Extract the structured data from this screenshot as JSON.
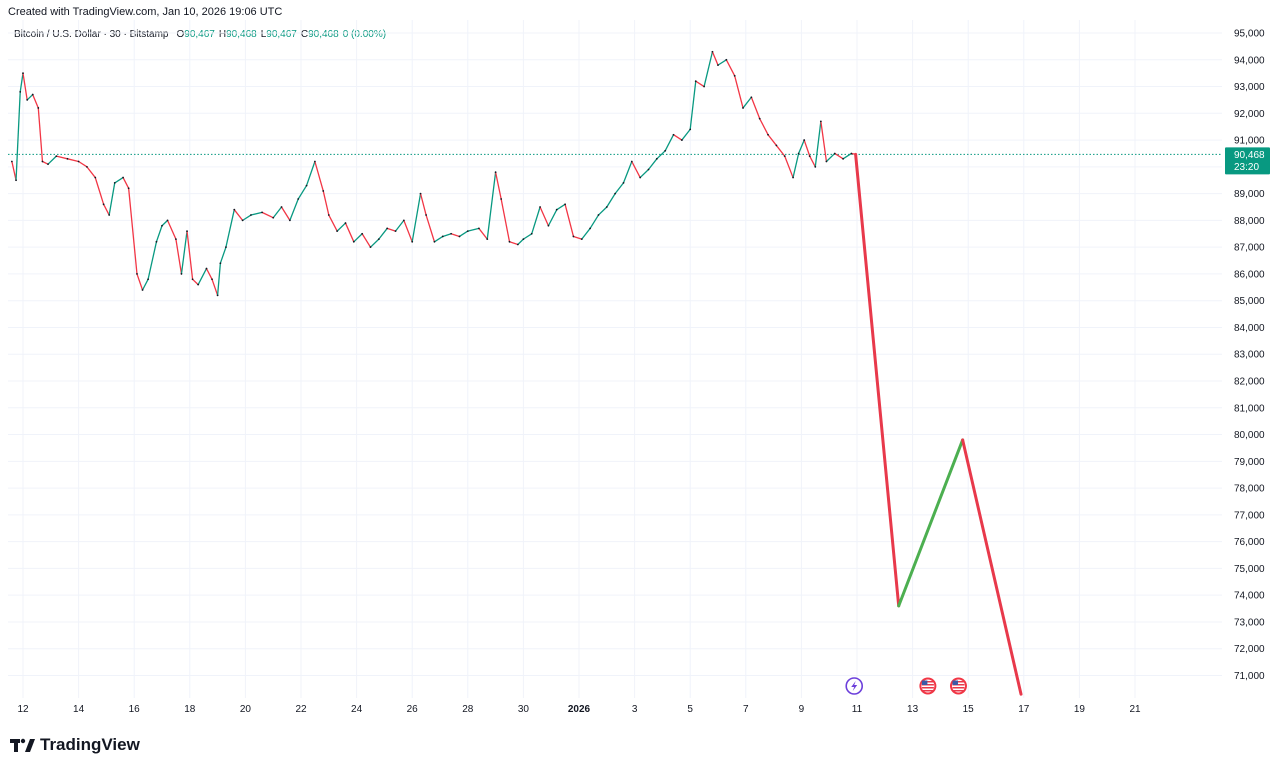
{
  "header": {
    "created": "Created with TradingView.com, Jan 10, 2026 19:06 UTC"
  },
  "legend": {
    "symbol": "Bitcoin / U.S. Dollar · 30 · Bitstamp",
    "o_key": "O",
    "o_val": "90,467",
    "h_key": "H",
    "h_val": "90,468",
    "l_key": "L",
    "l_val": "90,467",
    "c_key": "C",
    "c_val": "90,468",
    "change": "0 (0.00%)"
  },
  "price_badge": {
    "price": "90,468",
    "countdown": "23:20"
  },
  "brand": {
    "name": "TradingView"
  },
  "colors": {
    "up": "#089981",
    "down": "#F23645",
    "grid": "#F0F3FA",
    "projection_down": "#E8394B",
    "projection_up": "#4CAF50",
    "event_icon": "#6C3FDB"
  },
  "chart_data": {
    "type": "line",
    "title": "Bitcoin / U.S. Dollar · 30 · Bitstamp",
    "xlabel": "",
    "ylabel": "",
    "ylim": [
      70000,
      95000
    ],
    "y_ticks": [
      "95,000",
      "94,000",
      "93,000",
      "92,000",
      "91,000",
      "90,000",
      "89,000",
      "88,000",
      "87,000",
      "86,000",
      "85,000",
      "84,000",
      "83,000",
      "82,000",
      "81,000",
      "80,000",
      "79,000",
      "78,000",
      "77,000",
      "76,000",
      "75,000",
      "74,000",
      "73,000",
      "72,000",
      "71,000"
    ],
    "x_ticks": [
      {
        "day": 12,
        "label": "12"
      },
      {
        "day": 14,
        "label": "14"
      },
      {
        "day": 16,
        "label": "16"
      },
      {
        "day": 18,
        "label": "18"
      },
      {
        "day": 20,
        "label": "20"
      },
      {
        "day": 22,
        "label": "22"
      },
      {
        "day": 24,
        "label": "24"
      },
      {
        "day": 26,
        "label": "26"
      },
      {
        "day": 28,
        "label": "28"
      },
      {
        "day": 30,
        "label": "30"
      },
      {
        "day": 32,
        "label": "2026",
        "bold": true
      },
      {
        "day": 34,
        "label": "3"
      },
      {
        "day": 36,
        "label": "5"
      },
      {
        "day": 38,
        "label": "7"
      },
      {
        "day": 40,
        "label": "9"
      },
      {
        "day": 42,
        "label": "11"
      },
      {
        "day": 44,
        "label": "13"
      },
      {
        "day": 46,
        "label": "15"
      },
      {
        "day": 48,
        "label": "17"
      },
      {
        "day": 50,
        "label": "19"
      },
      {
        "day": 52,
        "label": "21"
      }
    ],
    "current_price": 90468,
    "price_series": {
      "name": "BTC/USD",
      "points": [
        [
          11.6,
          90200
        ],
        [
          11.75,
          89500
        ],
        [
          11.9,
          92800
        ],
        [
          12.0,
          93500
        ],
        [
          12.15,
          92500
        ],
        [
          12.35,
          92700
        ],
        [
          12.55,
          92200
        ],
        [
          12.7,
          90200
        ],
        [
          12.9,
          90100
        ],
        [
          13.2,
          90400
        ],
        [
          13.6,
          90300
        ],
        [
          14.0,
          90200
        ],
        [
          14.3,
          90000
        ],
        [
          14.6,
          89600
        ],
        [
          14.9,
          88600
        ],
        [
          15.1,
          88200
        ],
        [
          15.3,
          89400
        ],
        [
          15.6,
          89600
        ],
        [
          15.8,
          89200
        ],
        [
          16.1,
          86000
        ],
        [
          16.3,
          85400
        ],
        [
          16.5,
          85800
        ],
        [
          16.8,
          87200
        ],
        [
          17.0,
          87800
        ],
        [
          17.2,
          88000
        ],
        [
          17.5,
          87300
        ],
        [
          17.7,
          86000
        ],
        [
          17.9,
          87600
        ],
        [
          18.1,
          85800
        ],
        [
          18.3,
          85600
        ],
        [
          18.6,
          86200
        ],
        [
          18.8,
          85800
        ],
        [
          19.0,
          85200
        ],
        [
          19.1,
          86400
        ],
        [
          19.3,
          87000
        ],
        [
          19.6,
          88400
        ],
        [
          19.9,
          88000
        ],
        [
          20.2,
          88200
        ],
        [
          20.6,
          88300
        ],
        [
          21.0,
          88100
        ],
        [
          21.3,
          88500
        ],
        [
          21.6,
          88000
        ],
        [
          21.9,
          88800
        ],
        [
          22.2,
          89300
        ],
        [
          22.5,
          90200
        ],
        [
          22.8,
          89100
        ],
        [
          23.0,
          88200
        ],
        [
          23.3,
          87600
        ],
        [
          23.6,
          87900
        ],
        [
          23.9,
          87200
        ],
        [
          24.2,
          87500
        ],
        [
          24.5,
          87000
        ],
        [
          24.8,
          87300
        ],
        [
          25.1,
          87700
        ],
        [
          25.4,
          87600
        ],
        [
          25.7,
          88000
        ],
        [
          26.0,
          87200
        ],
        [
          26.3,
          89000
        ],
        [
          26.5,
          88200
        ],
        [
          26.8,
          87200
        ],
        [
          27.1,
          87400
        ],
        [
          27.4,
          87500
        ],
        [
          27.7,
          87400
        ],
        [
          28.0,
          87600
        ],
        [
          28.4,
          87700
        ],
        [
          28.7,
          87300
        ],
        [
          29.0,
          89800
        ],
        [
          29.2,
          88800
        ],
        [
          29.5,
          87200
        ],
        [
          29.8,
          87100
        ],
        [
          30.0,
          87300
        ],
        [
          30.3,
          87500
        ],
        [
          30.6,
          88500
        ],
        [
          30.9,
          87800
        ],
        [
          31.2,
          88400
        ],
        [
          31.5,
          88600
        ],
        [
          31.8,
          87400
        ],
        [
          32.1,
          87300
        ],
        [
          32.4,
          87700
        ],
        [
          32.7,
          88200
        ],
        [
          33.0,
          88500
        ],
        [
          33.3,
          89000
        ],
        [
          33.6,
          89400
        ],
        [
          33.9,
          90200
        ],
        [
          34.2,
          89600
        ],
        [
          34.5,
          89900
        ],
        [
          34.8,
          90300
        ],
        [
          35.1,
          90600
        ],
        [
          35.4,
          91200
        ],
        [
          35.7,
          91000
        ],
        [
          36.0,
          91400
        ],
        [
          36.2,
          93200
        ],
        [
          36.5,
          93000
        ],
        [
          36.8,
          94300
        ],
        [
          37.0,
          93800
        ],
        [
          37.3,
          94000
        ],
        [
          37.6,
          93400
        ],
        [
          37.9,
          92200
        ],
        [
          38.2,
          92600
        ],
        [
          38.5,
          91800
        ],
        [
          38.8,
          91200
        ],
        [
          39.1,
          90800
        ],
        [
          39.4,
          90400
        ],
        [
          39.7,
          89600
        ],
        [
          39.9,
          90500
        ],
        [
          40.1,
          91000
        ],
        [
          40.3,
          90400
        ],
        [
          40.5,
          90000
        ],
        [
          40.7,
          91700
        ],
        [
          40.9,
          90200
        ],
        [
          41.2,
          90500
        ],
        [
          41.5,
          90300
        ],
        [
          41.8,
          90500
        ],
        [
          41.95,
          90468
        ]
      ]
    },
    "projection_series": [
      {
        "name": "",
        "points": [
          [
            41.95,
            90468
          ],
          [
            43.5,
            73600
          ]
        ],
        "color": "red"
      },
      {
        "name": "",
        "points": [
          [
            43.5,
            73600
          ],
          [
            45.8,
            79800
          ]
        ],
        "color": "green"
      },
      {
        "name": "",
        "points": [
          [
            45.8,
            79800
          ],
          [
            47.9,
            70300
          ]
        ],
        "color": "red"
      }
    ],
    "event_markers": [
      {
        "day": 41.9,
        "type": "bolt"
      },
      {
        "day": 44.55,
        "type": "us-flag"
      },
      {
        "day": 45.65,
        "type": "us-flag"
      }
    ]
  }
}
